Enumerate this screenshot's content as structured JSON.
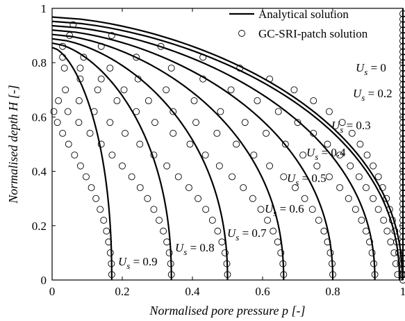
{
  "chart_data": {
    "type": "line",
    "xlabel": "Normalised pore pressure p [-]",
    "ylabel": "Normalised depth H [-]",
    "xlim": [
      0,
      1
    ],
    "ylim": [
      0,
      1
    ],
    "xticks": [
      "0",
      "0.2",
      "0.4",
      "0.6",
      "0.8",
      "1"
    ],
    "yticks": [
      "0",
      "0.2",
      "0.4",
      "0.6",
      "0.8",
      "1"
    ],
    "grid": false,
    "legend": {
      "placement": "top-right",
      "entries": [
        "Analytical solution",
        "GC-SRI-patch solution"
      ]
    },
    "series": [
      {
        "label": "U_s = 0",
        "us": 0.0,
        "pmax": 1.0,
        "sym": "U",
        "sub": "s",
        "text": " = 0",
        "markers": [
          [
            1.0,
            0.0
          ],
          [
            1.0,
            0.02
          ],
          [
            1.0,
            0.04
          ],
          [
            1.0,
            0.06
          ],
          [
            1.0,
            0.08
          ],
          [
            1.0,
            0.1
          ],
          [
            1.0,
            0.12
          ],
          [
            1.0,
            0.14
          ],
          [
            1.0,
            0.16
          ],
          [
            1.0,
            0.18
          ],
          [
            1.0,
            0.2
          ],
          [
            1.0,
            0.22
          ],
          [
            1.0,
            0.24
          ],
          [
            1.0,
            0.26
          ],
          [
            1.0,
            0.28
          ],
          [
            1.0,
            0.3
          ],
          [
            1.0,
            0.32
          ],
          [
            1.0,
            0.34
          ],
          [
            1.0,
            0.36
          ],
          [
            1.0,
            0.38
          ],
          [
            1.0,
            0.4
          ],
          [
            1.0,
            0.42
          ],
          [
            1.0,
            0.44
          ],
          [
            1.0,
            0.46
          ],
          [
            1.0,
            0.48
          ],
          [
            1.0,
            0.5
          ],
          [
            1.0,
            0.52
          ],
          [
            1.0,
            0.54
          ],
          [
            1.0,
            0.56
          ],
          [
            1.0,
            0.58
          ],
          [
            1.0,
            0.6
          ],
          [
            1.0,
            0.62
          ],
          [
            1.0,
            0.64
          ],
          [
            1.0,
            0.66
          ],
          [
            1.0,
            0.68
          ],
          [
            1.0,
            0.7
          ],
          [
            1.0,
            0.72
          ],
          [
            1.0,
            0.74
          ],
          [
            1.0,
            0.76
          ],
          [
            1.0,
            0.78
          ],
          [
            1.0,
            0.8
          ],
          [
            1.0,
            0.82
          ],
          [
            1.0,
            0.84
          ],
          [
            1.0,
            0.86
          ],
          [
            1.0,
            0.88
          ],
          [
            1.0,
            0.9
          ],
          [
            1.0,
            0.92
          ],
          [
            1.0,
            0.94
          ],
          [
            1.0,
            0.96
          ],
          [
            1.0,
            0.98
          ]
        ]
      },
      {
        "label": "U_s = 0.2",
        "us": 0.2,
        "pmax": 0.998,
        "sym": "U",
        "sub": "s",
        "text": " = 0.2",
        "markers": [
          [
            0.997,
            0.02
          ],
          [
            0.993,
            0.06
          ],
          [
            0.988,
            0.1
          ],
          [
            0.982,
            0.14
          ],
          [
            0.977,
            0.18
          ],
          [
            0.97,
            0.22
          ],
          [
            0.962,
            0.26
          ],
          [
            0.953,
            0.3
          ],
          [
            0.942,
            0.34
          ],
          [
            0.93,
            0.38
          ],
          [
            0.915,
            0.42
          ],
          [
            0.898,
            0.46
          ],
          [
            0.878,
            0.5
          ],
          [
            0.855,
            0.54
          ],
          [
            0.827,
            0.58
          ],
          [
            0.79,
            0.62
          ],
          [
            0.745,
            0.66
          ],
          [
            0.69,
            0.7
          ],
          [
            0.62,
            0.74
          ],
          [
            0.535,
            0.78
          ],
          [
            0.43,
            0.82
          ],
          [
            0.31,
            0.86
          ],
          [
            0.17,
            0.9
          ],
          [
            0.06,
            0.94
          ]
        ]
      },
      {
        "label": "U_s = 0.3",
        "us": 0.3,
        "pmax": 0.99,
        "sym": "U",
        "sub": "s",
        "text": " = 0.3",
        "markers": [
          [
            0.985,
            0.02
          ],
          [
            0.98,
            0.06
          ],
          [
            0.975,
            0.1
          ],
          [
            0.965,
            0.14
          ],
          [
            0.955,
            0.18
          ],
          [
            0.945,
            0.22
          ],
          [
            0.93,
            0.26
          ],
          [
            0.915,
            0.3
          ],
          [
            0.895,
            0.34
          ],
          [
            0.875,
            0.38
          ],
          [
            0.85,
            0.42
          ],
          [
            0.82,
            0.46
          ],
          [
            0.785,
            0.5
          ],
          [
            0.745,
            0.54
          ],
          [
            0.7,
            0.58
          ],
          [
            0.645,
            0.62
          ],
          [
            0.585,
            0.66
          ],
          [
            0.51,
            0.7
          ],
          [
            0.43,
            0.74
          ],
          [
            0.34,
            0.78
          ],
          [
            0.24,
            0.82
          ],
          [
            0.14,
            0.86
          ],
          [
            0.05,
            0.9
          ]
        ]
      },
      {
        "label": "U_s = 0.4",
        "us": 0.4,
        "pmax": 0.92,
        "sym": "U",
        "sub": "s",
        "text": " = 0.4",
        "markers": [
          [
            0.92,
            0.02
          ],
          [
            0.917,
            0.06
          ],
          [
            0.912,
            0.1
          ],
          [
            0.905,
            0.14
          ],
          [
            0.895,
            0.18
          ],
          [
            0.882,
            0.22
          ],
          [
            0.865,
            0.26
          ],
          [
            0.845,
            0.3
          ],
          [
            0.82,
            0.34
          ],
          [
            0.79,
            0.38
          ],
          [
            0.755,
            0.42
          ],
          [
            0.715,
            0.46
          ],
          [
            0.665,
            0.5
          ],
          [
            0.61,
            0.54
          ],
          [
            0.55,
            0.58
          ],
          [
            0.48,
            0.62
          ],
          [
            0.405,
            0.66
          ],
          [
            0.325,
            0.7
          ],
          [
            0.245,
            0.74
          ],
          [
            0.165,
            0.78
          ],
          [
            0.09,
            0.82
          ],
          [
            0.03,
            0.86
          ]
        ]
      },
      {
        "label": "U_s = 0.5",
        "us": 0.5,
        "pmax": 0.8,
        "sym": "U",
        "sub": "s",
        "text": " = 0.5",
        "markers": [
          [
            0.8,
            0.02
          ],
          [
            0.798,
            0.06
          ],
          [
            0.793,
            0.1
          ],
          [
            0.785,
            0.14
          ],
          [
            0.775,
            0.18
          ],
          [
            0.76,
            0.22
          ],
          [
            0.742,
            0.26
          ],
          [
            0.72,
            0.3
          ],
          [
            0.693,
            0.34
          ],
          [
            0.66,
            0.38
          ],
          [
            0.62,
            0.42
          ],
          [
            0.575,
            0.46
          ],
          [
            0.525,
            0.5
          ],
          [
            0.47,
            0.54
          ],
          [
            0.41,
            0.58
          ],
          [
            0.345,
            0.62
          ],
          [
            0.275,
            0.66
          ],
          [
            0.205,
            0.7
          ],
          [
            0.14,
            0.74
          ],
          [
            0.08,
            0.78
          ],
          [
            0.03,
            0.82
          ]
        ]
      },
      {
        "label": "U_s = 0.6",
        "us": 0.6,
        "pmax": 0.66,
        "sym": "U",
        "sub": "s",
        "text": " = 0.6",
        "markers": [
          [
            0.66,
            0.02
          ],
          [
            0.658,
            0.06
          ],
          [
            0.652,
            0.1
          ],
          [
            0.643,
            0.14
          ],
          [
            0.63,
            0.18
          ],
          [
            0.614,
            0.22
          ],
          [
            0.595,
            0.26
          ],
          [
            0.572,
            0.3
          ],
          [
            0.545,
            0.34
          ],
          [
            0.513,
            0.38
          ],
          [
            0.477,
            0.42
          ],
          [
            0.437,
            0.46
          ],
          [
            0.393,
            0.5
          ],
          [
            0.345,
            0.54
          ],
          [
            0.293,
            0.58
          ],
          [
            0.24,
            0.62
          ],
          [
            0.185,
            0.66
          ],
          [
            0.13,
            0.7
          ],
          [
            0.08,
            0.74
          ],
          [
            0.035,
            0.78
          ]
        ]
      },
      {
        "label": "U_s = 0.7",
        "us": 0.7,
        "pmax": 0.5,
        "sym": "U",
        "sub": "s",
        "text": " = 0.7",
        "markers": [
          [
            0.5,
            0.02
          ],
          [
            0.498,
            0.06
          ],
          [
            0.493,
            0.1
          ],
          [
            0.484,
            0.14
          ],
          [
            0.472,
            0.18
          ],
          [
            0.457,
            0.22
          ],
          [
            0.438,
            0.26
          ],
          [
            0.416,
            0.3
          ],
          [
            0.39,
            0.34
          ],
          [
            0.36,
            0.38
          ],
          [
            0.327,
            0.42
          ],
          [
            0.29,
            0.46
          ],
          [
            0.25,
            0.5
          ],
          [
            0.208,
            0.54
          ],
          [
            0.165,
            0.58
          ],
          [
            0.12,
            0.62
          ],
          [
            0.077,
            0.66
          ],
          [
            0.038,
            0.7
          ]
        ]
      },
      {
        "label": "U_s = 0.8",
        "us": 0.8,
        "pmax": 0.34,
        "sym": "U",
        "sub": "s",
        "text": " = 0.8",
        "markers": [
          [
            0.34,
            0.02
          ],
          [
            0.338,
            0.06
          ],
          [
            0.334,
            0.1
          ],
          [
            0.327,
            0.14
          ],
          [
            0.317,
            0.18
          ],
          [
            0.305,
            0.22
          ],
          [
            0.29,
            0.26
          ],
          [
            0.272,
            0.3
          ],
          [
            0.251,
            0.34
          ],
          [
            0.227,
            0.38
          ],
          [
            0.2,
            0.42
          ],
          [
            0.171,
            0.46
          ],
          [
            0.14,
            0.5
          ],
          [
            0.108,
            0.54
          ],
          [
            0.076,
            0.58
          ],
          [
            0.045,
            0.62
          ],
          [
            0.018,
            0.66
          ]
        ]
      },
      {
        "label": "U_s = 0.9",
        "us": 0.9,
        "pmax": 0.17,
        "sym": "U",
        "sub": "s",
        "text": " = 0.9",
        "markers": [
          [
            0.17,
            0.02
          ],
          [
            0.169,
            0.06
          ],
          [
            0.166,
            0.1
          ],
          [
            0.161,
            0.14
          ],
          [
            0.155,
            0.18
          ],
          [
            0.147,
            0.22
          ],
          [
            0.137,
            0.26
          ],
          [
            0.125,
            0.3
          ],
          [
            0.112,
            0.34
          ],
          [
            0.097,
            0.38
          ],
          [
            0.081,
            0.42
          ],
          [
            0.064,
            0.46
          ],
          [
            0.047,
            0.5
          ],
          [
            0.03,
            0.54
          ],
          [
            0.015,
            0.58
          ],
          [
            0.005,
            0.62
          ]
        ]
      }
    ]
  }
}
